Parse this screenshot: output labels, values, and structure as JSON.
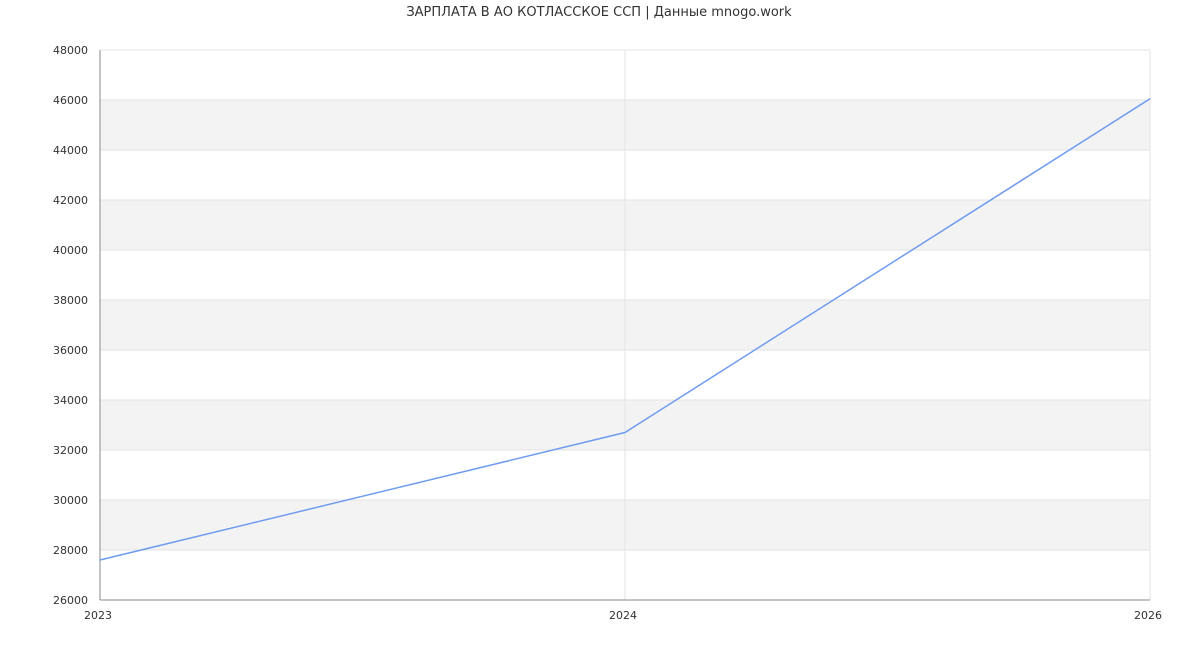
{
  "chart_data": {
    "type": "line",
    "title": "ЗАРПЛАТА В АО КОТЛАССКОЕ ССП | Данные mnogo.work",
    "xlabel": "",
    "ylabel": "",
    "categories": [
      "2023",
      "2024",
      "2026"
    ],
    "series": [
      {
        "values": [
          27600,
          32700,
          46050
        ],
        "color": "#6f9cf1"
      }
    ],
    "ylim": [
      26000,
      48000
    ],
    "yticks": [
      26000,
      28000,
      30000,
      32000,
      34000,
      36000,
      38000,
      40000,
      42000,
      44000,
      46000,
      48000
    ],
    "grid": true,
    "band_color": "#f3f3f3",
    "legend": "none"
  }
}
